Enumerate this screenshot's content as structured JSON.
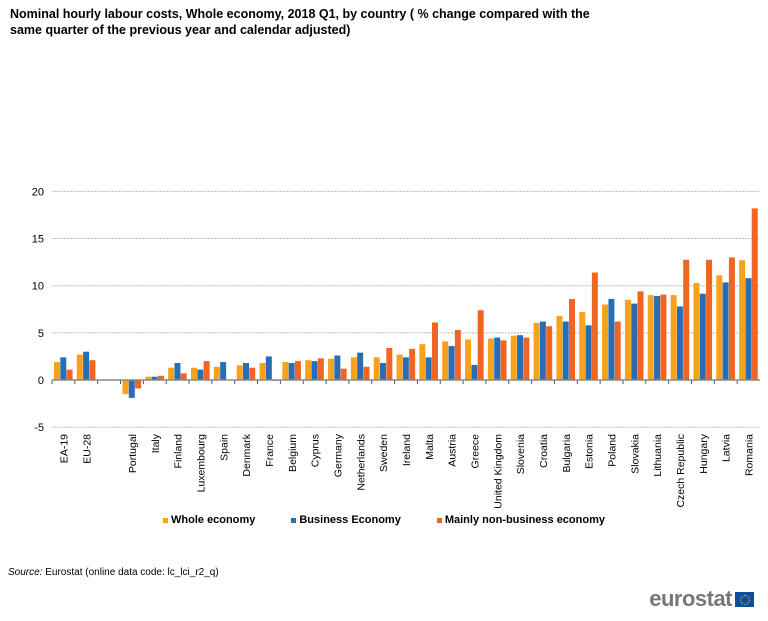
{
  "title": "Nominal hourly labour costs, Whole economy, 2018 Q1, by country ( % change compared with the same quarter of the previous year and calendar adjusted)",
  "chart_data": {
    "type": "bar",
    "title": "Nominal hourly labour costs, Whole economy, 2018 Q1, by country ( % change compared with the same quarter of the previous year and calendar adjusted)",
    "categories": [
      "EA-19",
      "EU-28",
      "",
      "Portugal",
      "Italy",
      "Finland",
      "Luxembourg",
      "Spain",
      "Denmark",
      "France",
      "Belgium",
      "Cyprus",
      "Germany",
      "Netherlands",
      "Sweden",
      "Ireland",
      "Malta",
      "Austria",
      "Greece",
      "United Kingdom",
      "Slovenia",
      "Croatia",
      "Bulgaria",
      "Estonia",
      "Poland",
      "Slovakia",
      "Lithuania",
      "Czech Republic",
      "Hungary",
      "Latvia",
      "Romania"
    ],
    "series": [
      {
        "name": "Whole economy",
        "color": "#f8a21b",
        "values": [
          1.9,
          2.7,
          null,
          -1.5,
          0.35,
          1.3,
          1.3,
          1.4,
          1.55,
          1.8,
          1.9,
          2.1,
          2.25,
          2.4,
          2.4,
          2.7,
          3.8,
          4.1,
          4.3,
          4.4,
          4.7,
          6.05,
          6.8,
          7.2,
          8.0,
          8.5,
          9.0,
          9.0,
          10.3,
          11.1,
          12.7
        ]
      },
      {
        "name": "Business Economy",
        "color": "#286eb4",
        "values": [
          2.4,
          3.0,
          null,
          -1.9,
          0.35,
          1.8,
          1.1,
          1.9,
          1.8,
          2.5,
          1.8,
          2.0,
          2.6,
          2.9,
          1.8,
          2.4,
          2.4,
          3.6,
          1.6,
          4.5,
          4.75,
          6.2,
          6.2,
          5.8,
          8.6,
          8.1,
          8.9,
          7.8,
          9.15,
          10.35,
          10.8
        ]
      },
      {
        "name": "Mainly non-business economy",
        "color": "#f06424",
        "values": [
          1.1,
          2.1,
          null,
          -0.9,
          0.45,
          0.7,
          2.0,
          0,
          1.3,
          -0.1,
          2.0,
          2.3,
          1.2,
          1.4,
          3.4,
          3.3,
          6.1,
          5.3,
          7.4,
          4.2,
          4.5,
          5.7,
          8.6,
          11.4,
          6.2,
          9.4,
          9.05,
          12.75,
          12.75,
          13.0,
          18.2
        ]
      }
    ],
    "ylim": [
      -5,
      20
    ],
    "yticks": [
      -5,
      0,
      5,
      10,
      15,
      20
    ],
    "grid": true,
    "legend": "bottom"
  },
  "source": {
    "label": "Source:",
    "text": "Eurostat (online data code: lc_lci_r2_q)"
  },
  "logo": "eurostat"
}
